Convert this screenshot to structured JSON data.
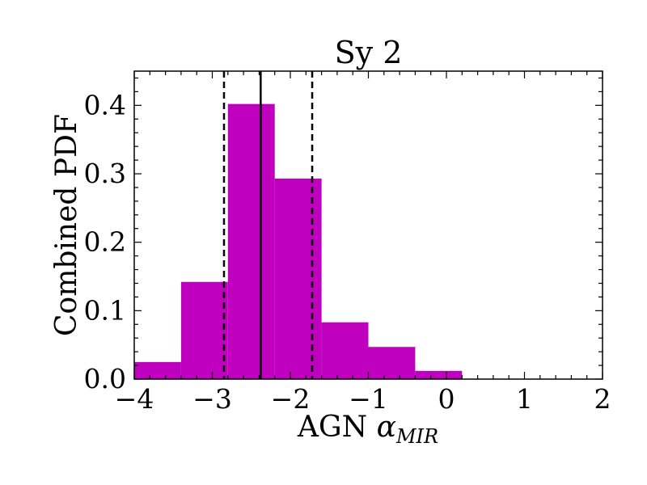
{
  "chart_data": {
    "type": "bar",
    "title": "Sy 2",
    "xlabel_prefix": "AGN ",
    "xlabel_symbol": "α",
    "xlabel_subscript": "MIR",
    "ylabel": "Combined PDF",
    "xlim": [
      -4,
      2
    ],
    "ylim": [
      0,
      0.45
    ],
    "xticks": [
      -4,
      -3,
      -2,
      -1,
      0,
      1,
      2
    ],
    "xtick_labels": [
      "−4",
      "−3",
      "−2",
      "−1",
      "0",
      "1",
      "2"
    ],
    "yticks": [
      0.0,
      0.1,
      0.2,
      0.3,
      0.4
    ],
    "ytick_labels": [
      "0.0",
      "0.1",
      "0.2",
      "0.3",
      "0.4"
    ],
    "bin_edges": [
      -4.0,
      -3.4,
      -2.8,
      -2.2,
      -1.6,
      -1.0,
      -0.4,
      0.2,
      0.8,
      1.4,
      2.0
    ],
    "values": [
      0.025,
      0.142,
      0.402,
      0.293,
      0.083,
      0.047,
      0.012,
      0.0,
      0.0,
      0.0
    ],
    "bar_color": "#bf00bf",
    "median_line": -2.38,
    "interval_lines": [
      -2.85,
      -1.72
    ]
  }
}
